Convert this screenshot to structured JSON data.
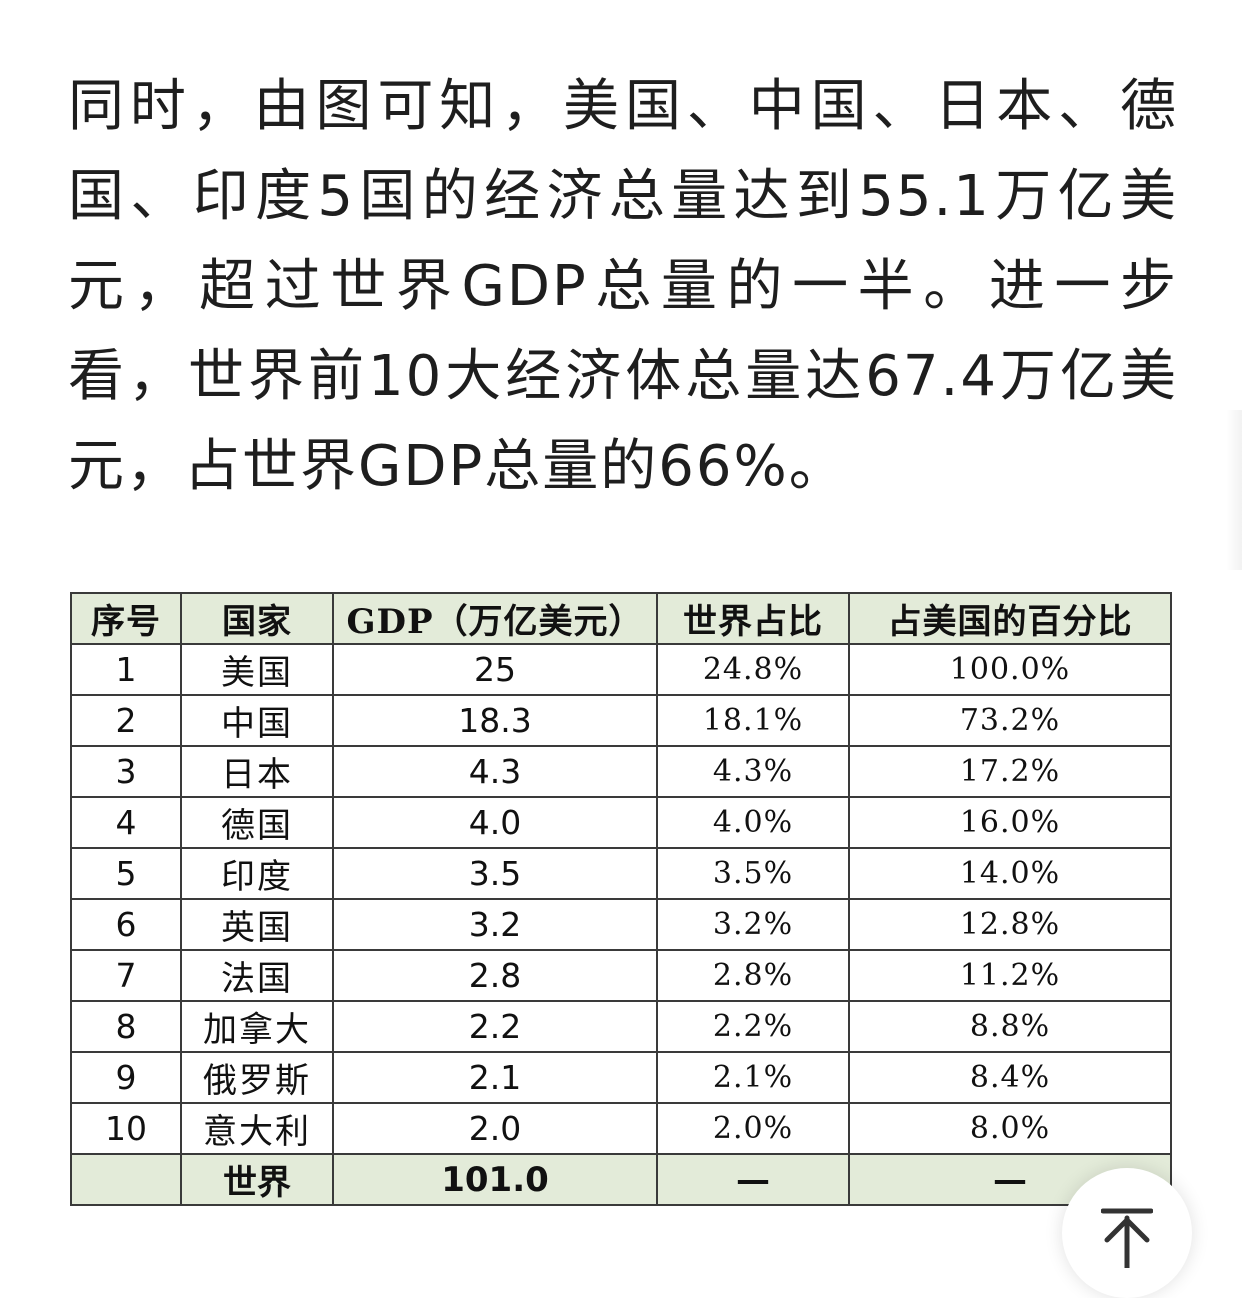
{
  "article": {
    "paragraph": "同时，由图可知，美国、中国、日本、德国、印度5国的经济总量达到55.1万亿美元，超过世界GDP总量的一半。进一步看，世界前10大经济体总量达67.4万亿美元，占世界GDP总量的66%。"
  },
  "table": {
    "headers": [
      "序号",
      "国家",
      "GDP（万亿美元）",
      "世界占比",
      "占美国的百分比"
    ],
    "rows": [
      {
        "rank": "1",
        "country": "美国",
        "gdp": "25",
        "world_share": "24.8%",
        "us_share": "100.0%"
      },
      {
        "rank": "2",
        "country": "中国",
        "gdp": "18.3",
        "world_share": "18.1%",
        "us_share": "73.2%"
      },
      {
        "rank": "3",
        "country": "日本",
        "gdp": "4.3",
        "world_share": "4.3%",
        "us_share": "17.2%"
      },
      {
        "rank": "4",
        "country": "德国",
        "gdp": "4.0",
        "world_share": "4.0%",
        "us_share": "16.0%"
      },
      {
        "rank": "5",
        "country": "印度",
        "gdp": "3.5",
        "world_share": "3.5%",
        "us_share": "14.0%"
      },
      {
        "rank": "6",
        "country": "英国",
        "gdp": "3.2",
        "world_share": "3.2%",
        "us_share": "12.8%"
      },
      {
        "rank": "7",
        "country": "法国",
        "gdp": "2.8",
        "world_share": "2.8%",
        "us_share": "11.2%"
      },
      {
        "rank": "8",
        "country": "加拿大",
        "gdp": "2.2",
        "world_share": "2.2%",
        "us_share": "8.8%"
      },
      {
        "rank": "9",
        "country": "俄罗斯",
        "gdp": "2.1",
        "world_share": "2.1%",
        "us_share": "8.4%"
      },
      {
        "rank": "10",
        "country": "意大利",
        "gdp": "2.0",
        "world_share": "2.0%",
        "us_share": "8.0%"
      }
    ],
    "footer": {
      "rank": "",
      "country": "世界",
      "gdp": "101.0",
      "world_share": "—",
      "us_share": "—"
    }
  },
  "back_to_top": {
    "icon": "arrow-up-icon"
  }
}
